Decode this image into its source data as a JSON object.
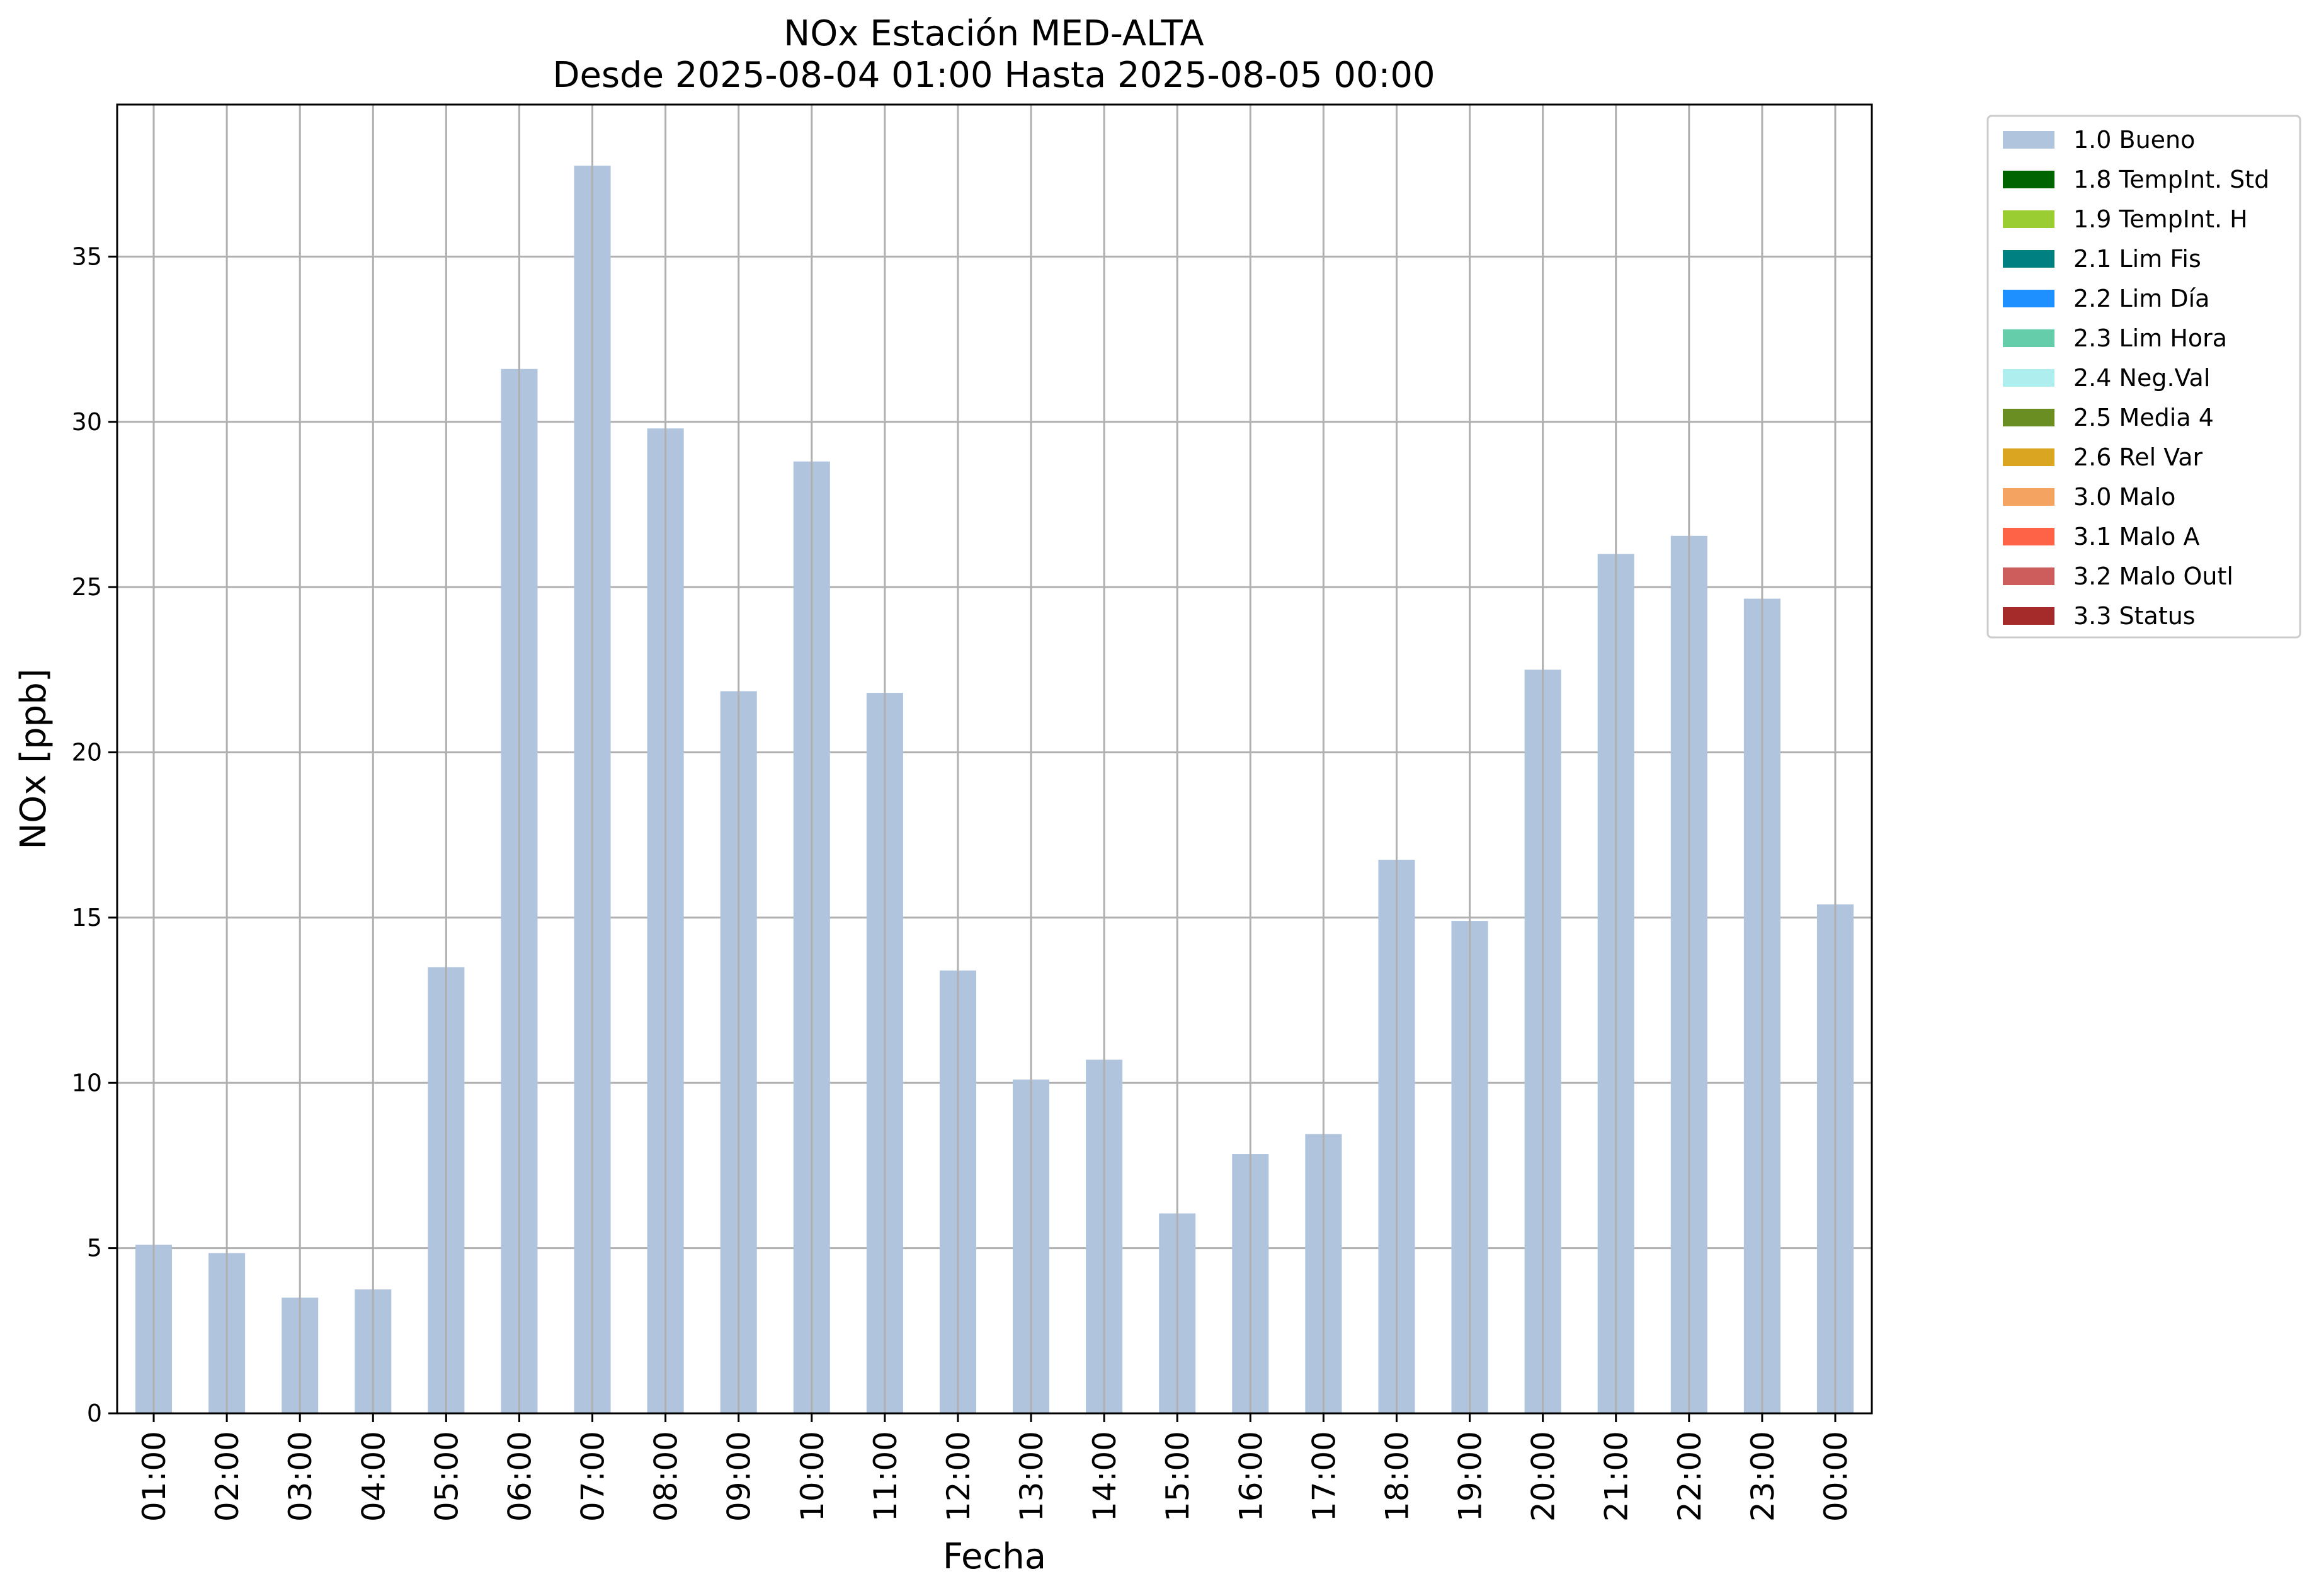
{
  "chart_data": {
    "type": "bar",
    "title": "NOx Estación MED-ALTA",
    "subtitle": "Desde 2025-08-04 01:00 Hasta 2025-08-05 00:00",
    "xlabel": "Fecha",
    "ylabel": "NOx [ppb]",
    "ylim": [
      0,
      39.6
    ],
    "yticks": [
      "0",
      "5",
      "10",
      "15",
      "20",
      "25",
      "30",
      "35"
    ],
    "grid": true,
    "legend_position": "outside-top-right",
    "categories": [
      "01:00",
      "02:00",
      "03:00",
      "04:00",
      "05:00",
      "06:00",
      "07:00",
      "08:00",
      "09:00",
      "10:00",
      "11:00",
      "12:00",
      "13:00",
      "14:00",
      "15:00",
      "16:00",
      "17:00",
      "18:00",
      "19:00",
      "20:00",
      "21:00",
      "22:00",
      "23:00",
      "00:00"
    ],
    "series": [
      {
        "name": "1.0 Bueno",
        "color": "#b0c4de",
        "values": [
          5.1,
          4.85,
          3.5,
          3.75,
          13.5,
          31.6,
          37.75,
          29.8,
          21.85,
          28.8,
          21.8,
          13.4,
          10.1,
          10.7,
          6.05,
          7.85,
          8.45,
          16.75,
          14.9,
          22.5,
          26.0,
          26.55,
          24.65,
          15.4
        ]
      }
    ],
    "legend": [
      {
        "label": "1.0 Bueno",
        "color": "#b0c4de"
      },
      {
        "label": "1.8 TempInt. Std",
        "color": "#006400"
      },
      {
        "label": "1.9 TempInt. H",
        "color": "#9acd32"
      },
      {
        "label": "2.1 Lim Fis",
        "color": "#008080"
      },
      {
        "label": "2.2 Lim Día",
        "color": "#1e90ff"
      },
      {
        "label": "2.3 Lim Hora",
        "color": "#66cdaa"
      },
      {
        "label": "2.4 Neg.Val",
        "color": "#afeeee"
      },
      {
        "label": "2.5 Media 4",
        "color": "#6b8e23"
      },
      {
        "label": "2.6 Rel Var",
        "color": "#daa520"
      },
      {
        "label": "3.0 Malo",
        "color": "#f4a460"
      },
      {
        "label": "3.1 Malo A",
        "color": "#ff6347"
      },
      {
        "label": "3.2 Malo Outl",
        "color": "#cd5c5c"
      },
      {
        "label": "3.3 Status",
        "color": "#a52a2a"
      }
    ]
  }
}
